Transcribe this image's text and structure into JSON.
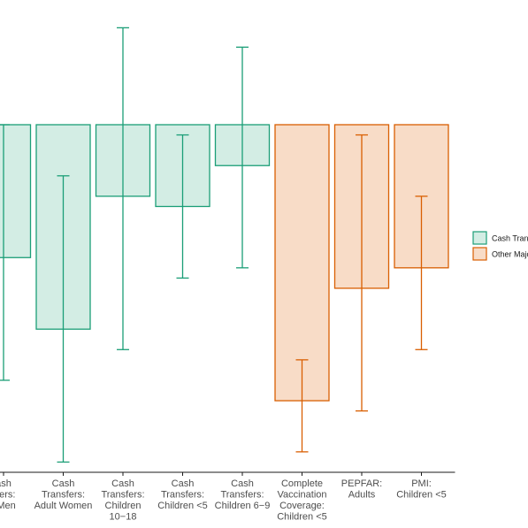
{
  "chart_data": {
    "type": "bar",
    "categories": [
      [
        "ash",
        "sfers:",
        "t Men"
      ],
      [
        "Cash",
        "Transfers:",
        "Adult Women"
      ],
      [
        "Cash",
        "Transfers:",
        "Children",
        "10−18"
      ],
      [
        "Cash",
        "Transfers:",
        "Children <5"
      ],
      [
        "Cash",
        "Transfers:",
        "Children 6−9"
      ],
      [
        "Complete",
        "Vaccination",
        "Coverage:",
        "Children <5"
      ],
      [
        "PEPFAR:",
        "Adults"
      ],
      [
        "PMI:",
        "Children <5"
      ]
    ],
    "groups": [
      "Cash Transfers",
      "Cash Transfers",
      "Cash Transfers",
      "Cash Transfers",
      "Cash Transfers",
      "Other Major",
      "Other Major",
      "Other Major"
    ],
    "values": [
      -0.26,
      -0.4,
      -0.14,
      -0.16,
      -0.08,
      -0.54,
      -0.32,
      -0.28
    ],
    "ci_low": [
      -0.5,
      -0.66,
      -0.44,
      -0.3,
      -0.28,
      -0.64,
      -0.56,
      -0.44
    ],
    "ci_high": [
      0.0,
      -0.1,
      0.2,
      -0.02,
      0.16,
      -0.46,
      -0.02,
      -0.14
    ],
    "ylim": [
      -0.68,
      0.25
    ],
    "legend": {
      "position": "right",
      "entries": [
        {
          "label": "Cash Tran",
          "group": "Cash Transfers"
        },
        {
          "label": "Other Majo",
          "group": "Other Major"
        }
      ]
    },
    "colors": {
      "Cash Transfers": {
        "fill": "#d3ede4",
        "stroke": "#1b9e77"
      },
      "Other Major": {
        "fill": "#f8dcc7",
        "stroke": "#d95f02"
      }
    }
  }
}
